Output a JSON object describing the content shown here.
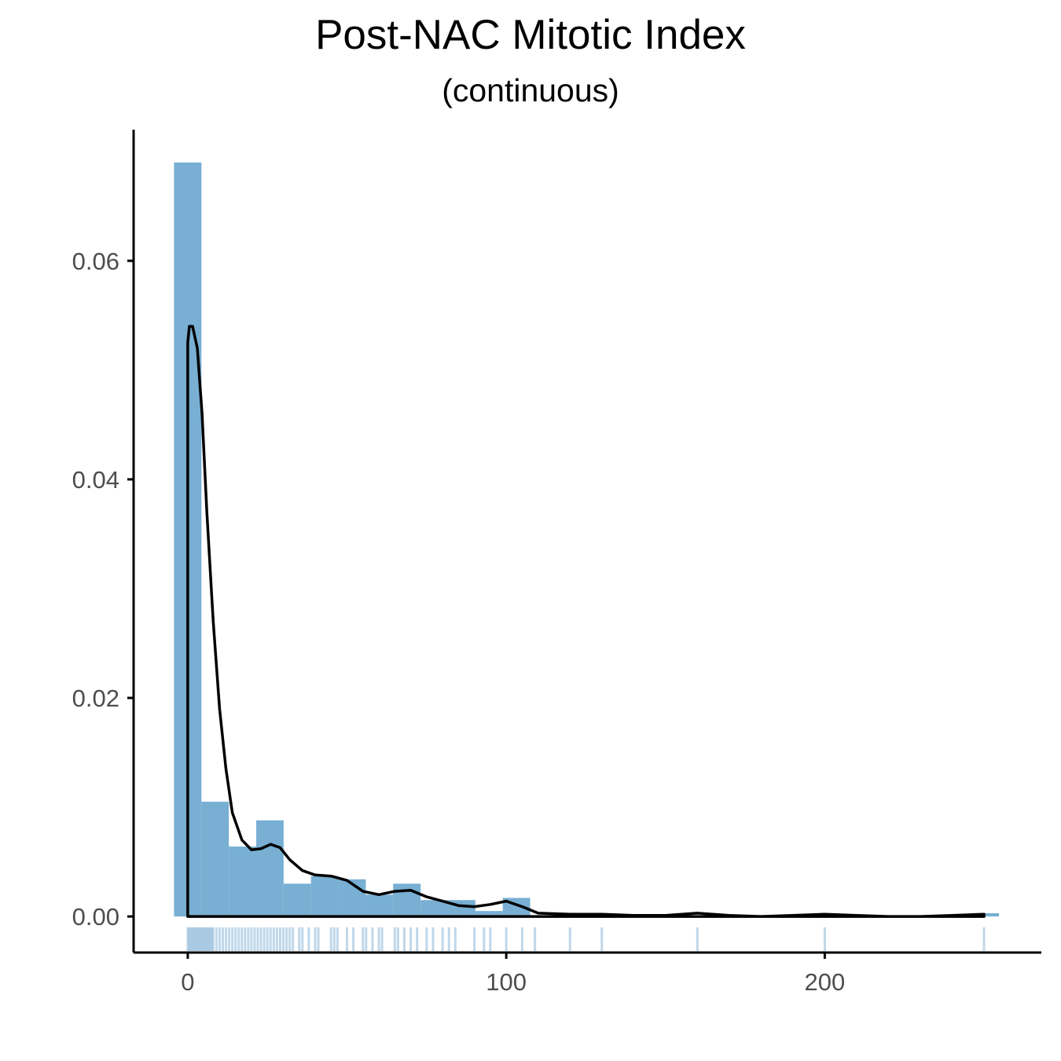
{
  "chart_data": {
    "type": "histogram",
    "title": "Post-NAC Mitotic Index",
    "subtitle": "(continuous)",
    "xlabel": "",
    "ylabel": "",
    "xlim": [
      -17,
      268
    ],
    "ylim": [
      -0.0033,
      0.072
    ],
    "x_ticks": [
      0,
      100,
      200
    ],
    "x_tick_labels": [
      "0",
      "100",
      "200"
    ],
    "y_ticks": [
      0.0,
      0.02,
      0.04,
      0.06
    ],
    "y_tick_labels": [
      "0.00",
      "0.02",
      "0.04",
      "0.06"
    ],
    "grid": false,
    "legend": "none",
    "colors": {
      "bars": "#78afd3",
      "rug": "#2b7bba",
      "density": "#000000",
      "axis": "#000000"
    },
    "bins": [
      {
        "x0": -4.3,
        "x1": 4.3,
        "density": 0.069
      },
      {
        "x0": 4.3,
        "x1": 12.9,
        "density": 0.0105
      },
      {
        "x0": 12.9,
        "x1": 21.5,
        "density": 0.0064
      },
      {
        "x0": 21.5,
        "x1": 30.1,
        "density": 0.0088
      },
      {
        "x0": 30.1,
        "x1": 38.7,
        "density": 0.003
      },
      {
        "x0": 38.7,
        "x1": 47.3,
        "density": 0.0037
      },
      {
        "x0": 47.3,
        "x1": 55.9,
        "density": 0.0034
      },
      {
        "x0": 55.9,
        "x1": 64.5,
        "density": 0.002
      },
      {
        "x0": 64.5,
        "x1": 73.1,
        "density": 0.003
      },
      {
        "x0": 73.1,
        "x1": 81.7,
        "density": 0.0015
      },
      {
        "x0": 81.7,
        "x1": 90.3,
        "density": 0.0015
      },
      {
        "x0": 90.3,
        "x1": 98.9,
        "density": 0.0005
      },
      {
        "x0": 98.9,
        "x1": 107.5,
        "density": 0.0017
      },
      {
        "x0": 246.1,
        "x1": 254.7,
        "density": 0.0003
      }
    ],
    "density_curve": {
      "x": [
        0,
        0.5,
        1.5,
        3,
        4.5,
        6,
        8,
        10,
        12,
        14,
        17,
        20,
        23,
        26,
        29,
        32,
        36,
        40,
        45,
        50,
        55,
        60,
        65,
        70,
        75,
        80,
        85,
        90,
        95,
        100,
        105,
        110,
        120,
        130,
        140,
        150,
        160,
        170,
        180,
        190,
        200,
        210,
        220,
        230,
        240,
        250
      ],
      "y": [
        0.0525,
        0.054,
        0.054,
        0.052,
        0.046,
        0.037,
        0.027,
        0.019,
        0.0135,
        0.0095,
        0.007,
        0.0061,
        0.0062,
        0.0066,
        0.0063,
        0.0052,
        0.0042,
        0.0038,
        0.0037,
        0.0033,
        0.0023,
        0.002,
        0.0023,
        0.0024,
        0.0018,
        0.0014,
        0.001,
        0.0009,
        0.0011,
        0.0014,
        0.0009,
        0.0003,
        0.0002,
        0.0002,
        0.0001,
        0.0001,
        0.0003,
        0.0001,
        0.0,
        0.0001,
        0.0002,
        0.0001,
        0.0,
        0.0,
        0.0001,
        0.0002
      ],
      "closed_at_zero": true
    },
    "rug": [
      0,
      0.5,
      1,
      1.5,
      2,
      2.5,
      3,
      3.5,
      4,
      4.5,
      5,
      5.5,
      6,
      6.5,
      7,
      7.5,
      8,
      9,
      10,
      11,
      12,
      13,
      14,
      15,
      16,
      17,
      18,
      19,
      20,
      21,
      22,
      23,
      24,
      25,
      26,
      27,
      28,
      29,
      30,
      31,
      32,
      33,
      35,
      36,
      38,
      40,
      41,
      45,
      46,
      47,
      50,
      52,
      55,
      56,
      58,
      60,
      61,
      65,
      66,
      68,
      70,
      72,
      75,
      77,
      80,
      82,
      84,
      90,
      93,
      95,
      100,
      105,
      109,
      120,
      130,
      160,
      200,
      250
    ]
  }
}
